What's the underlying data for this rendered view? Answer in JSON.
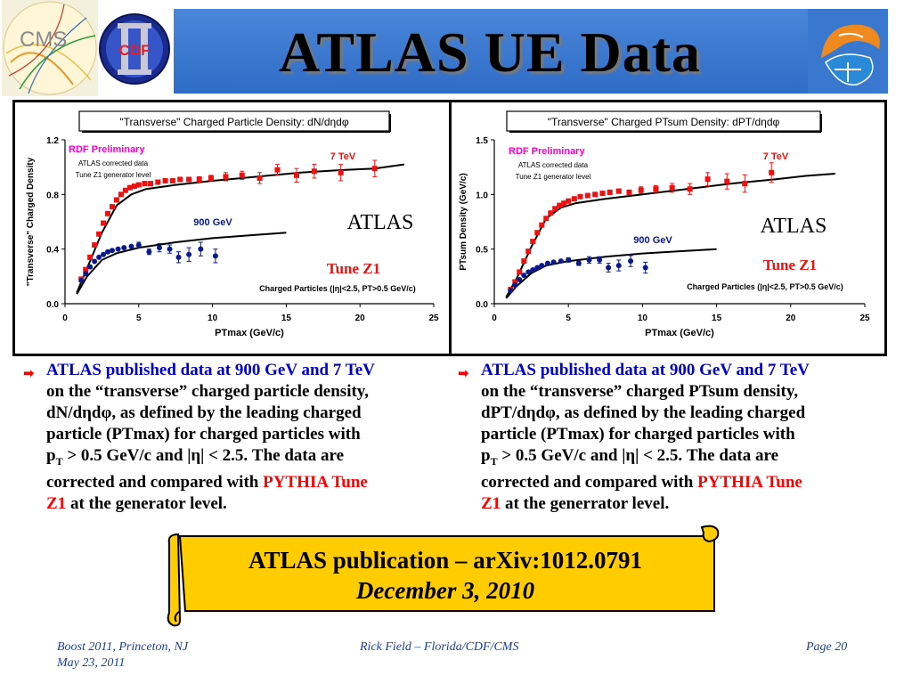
{
  "title": "ATLAS UE Data",
  "logos": {
    "cms": "CMS",
    "cdf": "CDF",
    "uf_icon": "uf-swirl-icon"
  },
  "colors": {
    "red_series": "#ee1111",
    "blue_series": "#0a1a8c",
    "header_blue": "#3a78d0",
    "scroll_fill": "#ffcc00",
    "highlight_red": "#ff0000",
    "highlight_blue": "#0000cc"
  },
  "chart_data": [
    {
      "type": "scatter",
      "title": "\"Transverse\" Charged Particle Density: dN/dηdφ",
      "xlabel": "PTmax  (GeV/c)",
      "ylabel": "\"Transverse\" Charged Density",
      "xlim": [
        0,
        25
      ],
      "ylim": [
        0,
        1.2
      ],
      "xticks": [
        "0",
        "5",
        "10",
        "15",
        "20",
        "25"
      ],
      "yticks": [
        "0.0",
        "0.4",
        "0.8",
        "1.2"
      ],
      "annotations": {
        "preliminary": "RDF Preliminary",
        "corrected": "ATLAS corrected data",
        "generator": "Tune Z1 generator level",
        "atlas": "ATLAS",
        "tune": "Tune Z1",
        "cuts": "Charged Particles (|η|<2.5, PT>0.5 GeV/c)"
      },
      "series": [
        {
          "name": "7 TeV",
          "color": "#ee1111",
          "marker": "square",
          "points": [
            [
              1.1,
              0.18
            ],
            [
              1.4,
              0.25
            ],
            [
              1.7,
              0.34
            ],
            [
              2.0,
              0.43
            ],
            [
              2.3,
              0.51
            ],
            [
              2.6,
              0.59
            ],
            [
              2.9,
              0.66
            ],
            [
              3.2,
              0.71
            ],
            [
              3.5,
              0.76
            ],
            [
              3.8,
              0.8
            ],
            [
              4.1,
              0.83
            ],
            [
              4.4,
              0.85
            ],
            [
              4.7,
              0.86
            ],
            [
              5.0,
              0.87
            ],
            [
              5.4,
              0.88
            ],
            [
              5.8,
              0.88
            ],
            [
              6.3,
              0.89
            ],
            [
              6.8,
              0.9
            ],
            [
              7.3,
              0.9
            ],
            [
              7.8,
              0.91
            ],
            [
              8.4,
              0.91
            ],
            [
              9.1,
              0.91
            ],
            [
              9.9,
              0.92
            ],
            [
              10.9,
              0.93
            ],
            [
              12.0,
              0.94
            ],
            [
              13.2,
              0.92
            ],
            [
              14.4,
              0.98
            ],
            [
              15.7,
              0.94
            ],
            [
              16.9,
              0.97
            ],
            [
              18.7,
              0.96
            ],
            [
              21.0,
              0.99
            ]
          ],
          "errors": [
            0.01,
            0.01,
            0.01,
            0.01,
            0.01,
            0.01,
            0.01,
            0.01,
            0.01,
            0.01,
            0.01,
            0.01,
            0.01,
            0.01,
            0.01,
            0.01,
            0.01,
            0.01,
            0.01,
            0.01,
            0.01,
            0.02,
            0.02,
            0.03,
            0.03,
            0.04,
            0.04,
            0.05,
            0.05,
            0.06,
            0.06
          ]
        },
        {
          "name": "900 GeV",
          "color": "#0a1a8c",
          "marker": "circle",
          "points": [
            [
              1.1,
              0.17
            ],
            [
              1.4,
              0.22
            ],
            [
              1.7,
              0.27
            ],
            [
              2.0,
              0.31
            ],
            [
              2.3,
              0.34
            ],
            [
              2.6,
              0.36
            ],
            [
              2.9,
              0.38
            ],
            [
              3.2,
              0.39
            ],
            [
              3.6,
              0.4
            ],
            [
              4.0,
              0.41
            ],
            [
              4.5,
              0.42
            ],
            [
              5.0,
              0.43
            ],
            [
              5.7,
              0.38
            ],
            [
              6.4,
              0.41
            ],
            [
              7.1,
              0.4
            ],
            [
              7.7,
              0.34
            ],
            [
              8.4,
              0.36
            ],
            [
              9.2,
              0.4
            ],
            [
              10.2,
              0.35
            ]
          ],
          "errors": [
            0.01,
            0.01,
            0.01,
            0.01,
            0.01,
            0.01,
            0.01,
            0.01,
            0.01,
            0.01,
            0.01,
            0.02,
            0.02,
            0.03,
            0.03,
            0.04,
            0.05,
            0.05,
            0.05
          ]
        }
      ],
      "curves": [
        {
          "name": "Tune Z1 7 TeV",
          "points": [
            [
              0.8,
              0.08
            ],
            [
              1.5,
              0.26
            ],
            [
              2.5,
              0.52
            ],
            [
              3.5,
              0.72
            ],
            [
              4.5,
              0.8
            ],
            [
              5.5,
              0.84
            ],
            [
              7.5,
              0.87
            ],
            [
              10,
              0.9
            ],
            [
              13,
              0.93
            ],
            [
              16,
              0.96
            ],
            [
              19,
              0.98
            ],
            [
              21,
              0.99
            ],
            [
              23,
              1.02
            ]
          ]
        },
        {
          "name": "Tune Z1 900 GeV",
          "points": [
            [
              0.8,
              0.07
            ],
            [
              1.5,
              0.2
            ],
            [
              2.5,
              0.32
            ],
            [
              3.5,
              0.37
            ],
            [
              5,
              0.41
            ],
            [
              7.5,
              0.45
            ],
            [
              10,
              0.48
            ],
            [
              12.5,
              0.5
            ],
            [
              15,
              0.52
            ]
          ]
        }
      ],
      "series_labels": [
        "7 TeV",
        "900 GeV"
      ]
    },
    {
      "type": "scatter",
      "title": "\"Transverse\" Charged PTsum Density: dPT/dηdφ",
      "xlabel": "PTmax  (GeV/c)",
      "ylabel": "PTsum Density (GeV/c)",
      "xlim": [
        0,
        25
      ],
      "ylim": [
        0,
        1.5
      ],
      "xticks": [
        "0",
        "5",
        "10",
        "15",
        "20",
        "25"
      ],
      "yticks": [
        "0.0",
        "0.5",
        "1.0",
        "1.5"
      ],
      "annotations": {
        "preliminary": "RDF Preliminary",
        "corrected": "ATLAS corrected data",
        "generator": "Tune Z1 generator level",
        "atlas": "ATLAS",
        "tune": "Tune Z1",
        "cuts": "Charged Particles (|η|<2.5, PT>0.5 GeV/c)"
      },
      "series": [
        {
          "name": "7 TeV",
          "color": "#ee1111",
          "marker": "square",
          "points": [
            [
              1.1,
              0.13
            ],
            [
              1.4,
              0.2
            ],
            [
              1.7,
              0.29
            ],
            [
              2.0,
              0.39
            ],
            [
              2.3,
              0.48
            ],
            [
              2.6,
              0.57
            ],
            [
              2.9,
              0.65
            ],
            [
              3.2,
              0.72
            ],
            [
              3.5,
              0.78
            ],
            [
              3.8,
              0.83
            ],
            [
              4.1,
              0.87
            ],
            [
              4.4,
              0.9
            ],
            [
              4.7,
              0.92
            ],
            [
              5.0,
              0.94
            ],
            [
              5.4,
              0.96
            ],
            [
              5.8,
              0.98
            ],
            [
              6.3,
              0.99
            ],
            [
              6.8,
              1.0
            ],
            [
              7.3,
              1.01
            ],
            [
              7.8,
              1.02
            ],
            [
              8.4,
              1.03
            ],
            [
              9.1,
              1.02
            ],
            [
              9.9,
              1.04
            ],
            [
              10.9,
              1.05
            ],
            [
              12.0,
              1.06
            ],
            [
              13.2,
              1.05
            ],
            [
              14.4,
              1.14
            ],
            [
              15.7,
              1.12
            ],
            [
              16.9,
              1.1
            ],
            [
              18.7,
              1.2
            ]
          ],
          "errors": [
            0.01,
            0.01,
            0.01,
            0.01,
            0.01,
            0.01,
            0.01,
            0.01,
            0.01,
            0.01,
            0.01,
            0.01,
            0.01,
            0.01,
            0.01,
            0.01,
            0.01,
            0.01,
            0.01,
            0.02,
            0.02,
            0.02,
            0.03,
            0.03,
            0.04,
            0.05,
            0.06,
            0.07,
            0.08,
            0.09
          ]
        },
        {
          "name": "900 GeV",
          "color": "#0a1a8c",
          "marker": "circle",
          "points": [
            [
              1.1,
              0.12
            ],
            [
              1.4,
              0.17
            ],
            [
              1.7,
              0.22
            ],
            [
              2.0,
              0.26
            ],
            [
              2.3,
              0.29
            ],
            [
              2.6,
              0.31
            ],
            [
              2.9,
              0.33
            ],
            [
              3.2,
              0.35
            ],
            [
              3.6,
              0.37
            ],
            [
              4.0,
              0.38
            ],
            [
              4.5,
              0.39
            ],
            [
              5.0,
              0.4
            ],
            [
              5.7,
              0.37
            ],
            [
              6.4,
              0.4
            ],
            [
              7.1,
              0.4
            ],
            [
              7.7,
              0.33
            ],
            [
              8.4,
              0.35
            ],
            [
              9.2,
              0.39
            ],
            [
              10.2,
              0.33
            ]
          ],
          "errors": [
            0.01,
            0.01,
            0.01,
            0.01,
            0.01,
            0.01,
            0.01,
            0.01,
            0.01,
            0.01,
            0.01,
            0.02,
            0.02,
            0.03,
            0.03,
            0.04,
            0.05,
            0.05,
            0.05
          ]
        }
      ],
      "curves": [
        {
          "name": "Tune Z1 7 TeV",
          "points": [
            [
              0.8,
              0.06
            ],
            [
              1.5,
              0.23
            ],
            [
              2.5,
              0.52
            ],
            [
              3.5,
              0.78
            ],
            [
              4.5,
              0.88
            ],
            [
              5.5,
              0.92
            ],
            [
              7.5,
              0.96
            ],
            [
              10,
              1.0
            ],
            [
              13,
              1.05
            ],
            [
              16,
              1.1
            ],
            [
              19,
              1.14
            ],
            [
              21,
              1.17
            ],
            [
              23,
              1.19
            ]
          ]
        },
        {
          "name": "Tune Z1 900 GeV",
          "points": [
            [
              0.8,
              0.05
            ],
            [
              1.5,
              0.16
            ],
            [
              2.5,
              0.28
            ],
            [
              3.5,
              0.35
            ],
            [
              5,
              0.39
            ],
            [
              7.5,
              0.43
            ],
            [
              10,
              0.46
            ],
            [
              12.5,
              0.48
            ],
            [
              15,
              0.5
            ]
          ]
        }
      ],
      "series_labels": [
        "7 TeV",
        "900 GeV"
      ]
    }
  ],
  "bullets": {
    "left": {
      "lead": "ATLAS published data at  900 GeV and 7 TeV",
      "line2": "on the “transverse” charged particle density,",
      "line3": "dN/dηdφ, as defined by the leading charged",
      "line4": "particle (PTmax) for charged particles with",
      "line5_pre": "p",
      "line5_sub": "T",
      "line5_post": " > 0.5 GeV/c and |η| < 2.5.  The data are",
      "line6_pre": "corrected and compared with ",
      "line6_red": "PYTHIA Tune",
      "line7_red": "Z1",
      "line7_post": " at the generator level."
    },
    "right": {
      "lead": "ATLAS published data at  900 GeV and 7 TeV",
      "line2": "on the “transverse” charged PTsum density,",
      "line3": "dPT/dηdφ, as defined by the leading charged",
      "line4": "particle (PTmax) for charged particles with",
      "line5_pre": "p",
      "line5_sub": "T",
      "line5_post": " > 0.5 GeV/c and |η| < 2.5.  The data are",
      "line6_pre": "corrected and compared with ",
      "line6_red": "PYTHIA Tune",
      "line7_red": "Z1",
      "line7_post": " at the generrator level."
    }
  },
  "banner": {
    "line1": "ATLAS publication – arXiv:1012.0791",
    "line2": "December 3, 2010"
  },
  "footer": {
    "left_line1": "Boost 2011, Princeton, NJ",
    "left_line2": "May 23, 2011",
    "center": "Rick Field – Florida/CDF/CMS",
    "right": "Page 20"
  }
}
